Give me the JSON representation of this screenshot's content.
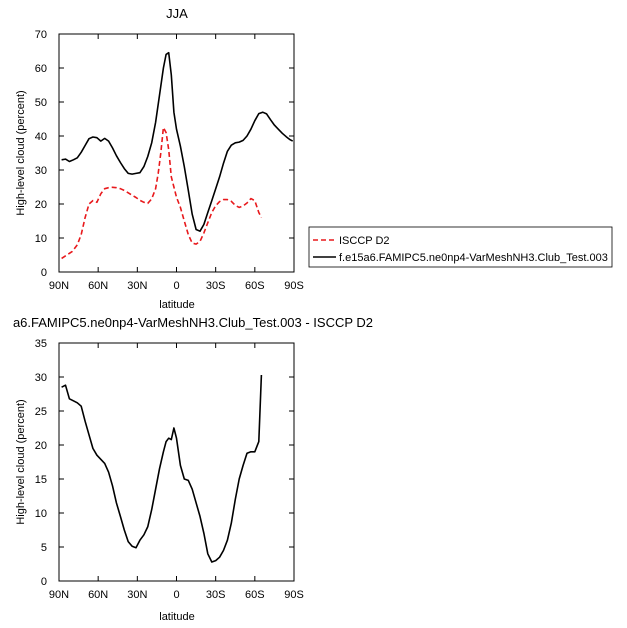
{
  "chart_data": [
    {
      "type": "line",
      "title": "JJA",
      "xlabel": "latitude",
      "ylabel": "High-level cloud (percent)",
      "xlim": [
        90,
        -90
      ],
      "ylim": [
        0,
        70
      ],
      "xticks": [
        90,
        60,
        30,
        0,
        -30,
        -60,
        -90
      ],
      "xtick_labels": [
        "90N",
        "60N",
        "30N",
        "0",
        "30S",
        "60S",
        "90S"
      ],
      "yticks": [
        0,
        10,
        20,
        30,
        40,
        50,
        60,
        70
      ],
      "ytick_labels": [
        "0",
        "10",
        "20",
        "30",
        "40",
        "50",
        "60",
        "70"
      ],
      "grid": false,
      "legend_position": "right",
      "series": [
        {
          "name": "ISCCP D2",
          "color": "#e8191c",
          "dash": "dashed",
          "x": [
            88,
            84,
            80,
            76,
            73,
            70,
            67,
            64,
            61,
            58,
            55,
            52,
            49,
            46,
            43,
            40,
            37,
            34,
            31,
            28,
            25,
            22,
            19,
            16,
            14,
            12,
            10,
            8,
            6,
            4,
            2,
            0,
            -3,
            -6,
            -9,
            -12,
            -15,
            -18,
            -21,
            -24,
            -27,
            -30,
            -33,
            -36,
            -39,
            -42,
            -45,
            -48,
            -51,
            -54,
            -57,
            -60,
            -63,
            -65
          ],
          "y": [
            4,
            5,
            6,
            8,
            11,
            16,
            20,
            21,
            20.5,
            23,
            24.5,
            24.8,
            24.9,
            24.8,
            24.5,
            24,
            23.3,
            22.6,
            21.9,
            21.1,
            20.5,
            20.2,
            21.5,
            24.5,
            29,
            35,
            42.5,
            41,
            36,
            28,
            25,
            22,
            19,
            15,
            11,
            8.5,
            8.2,
            9,
            11.5,
            14.5,
            17.5,
            19.5,
            20.7,
            21.3,
            21.3,
            20.8,
            19.6,
            19,
            19.4,
            20.3,
            21.6,
            21,
            17.5,
            16
          ]
        },
        {
          "name": "f.e15a6.FAMIPC5.ne0np4-VarMeshNH3.Club_Test.003",
          "color": "#000000",
          "dash": "solid",
          "x": [
            88,
            85,
            82,
            79,
            76,
            73,
            70,
            67,
            64,
            61,
            58,
            55,
            52,
            49,
            46,
            43,
            40,
            37,
            34,
            31,
            28,
            25,
            22,
            19,
            16,
            13,
            10,
            8,
            6,
            4,
            2,
            0,
            -3,
            -6,
            -9,
            -12,
            -15,
            -18,
            -21,
            -24,
            -27,
            -30,
            -33,
            -36,
            -39,
            -42,
            -45,
            -48,
            -51,
            -54,
            -57,
            -60,
            -63,
            -66,
            -69,
            -72,
            -75,
            -78,
            -81,
            -84,
            -87,
            -89
          ],
          "y": [
            33,
            33.2,
            32.5,
            33,
            33.6,
            35.2,
            37.2,
            39.2,
            39.7,
            39.5,
            38.5,
            39.3,
            38.5,
            36.5,
            34.2,
            32.2,
            30.4,
            29,
            28.8,
            29,
            29.2,
            31,
            34,
            38,
            44,
            52,
            60,
            64,
            64.5,
            58,
            47,
            42,
            37,
            31,
            24,
            17,
            12.5,
            12,
            14,
            17.5,
            21,
            24.5,
            28,
            32,
            35.5,
            37.3,
            38,
            38.2,
            38.7,
            40,
            42,
            44.5,
            46.6,
            47,
            46.5,
            44.8,
            43.2,
            42,
            40.8,
            39.8,
            38.9,
            38.5
          ]
        }
      ]
    },
    {
      "type": "line",
      "title": "a6.FAMIPC5.ne0np4-VarMeshNH3.Club_Test.003 - ISCCP D2",
      "xlabel": "latitude",
      "ylabel": "High-level cloud (percent)",
      "xlim": [
        90,
        -90
      ],
      "ylim": [
        0,
        35
      ],
      "xticks": [
        90,
        60,
        30,
        0,
        -30,
        -60,
        -90
      ],
      "xtick_labels": [
        "90N",
        "60N",
        "30N",
        "0",
        "30S",
        "60S",
        "90S"
      ],
      "yticks": [
        0,
        5,
        10,
        15,
        20,
        25,
        30,
        35
      ],
      "ytick_labels": [
        "0",
        "5",
        "10",
        "15",
        "20",
        "25",
        "30",
        "35"
      ],
      "grid": false,
      "series": [
        {
          "color": "#000000",
          "dash": "solid",
          "x": [
            88,
            85,
            82,
            79,
            76,
            73,
            70,
            67,
            64,
            61,
            58,
            55,
            52,
            49,
            46,
            43,
            40,
            37,
            34,
            31,
            28,
            25,
            22,
            19,
            16,
            13,
            10,
            8,
            6,
            4,
            2,
            0,
            -3,
            -6,
            -9,
            -12,
            -15,
            -18,
            -21,
            -24,
            -27,
            -30,
            -33,
            -36,
            -39,
            -42,
            -45,
            -48,
            -51,
            -54,
            -57,
            -60,
            -63,
            -65
          ],
          "y": [
            28.5,
            28.8,
            26.8,
            26.5,
            26.2,
            25.7,
            23.5,
            21.5,
            19.5,
            18.5,
            17.9,
            17.3,
            16,
            14,
            11.5,
            9.5,
            7.5,
            5.8,
            5.1,
            4.9,
            6,
            6.8,
            8,
            10.5,
            13.5,
            16.5,
            19,
            20.5,
            21,
            20.8,
            22.5,
            21,
            17,
            15,
            14.8,
            13.5,
            11.5,
            9.5,
            7,
            4,
            2.8,
            3,
            3.5,
            4.5,
            6,
            8.5,
            12,
            15,
            17,
            18.8,
            19,
            19,
            20.5,
            30.3
          ]
        }
      ]
    }
  ]
}
